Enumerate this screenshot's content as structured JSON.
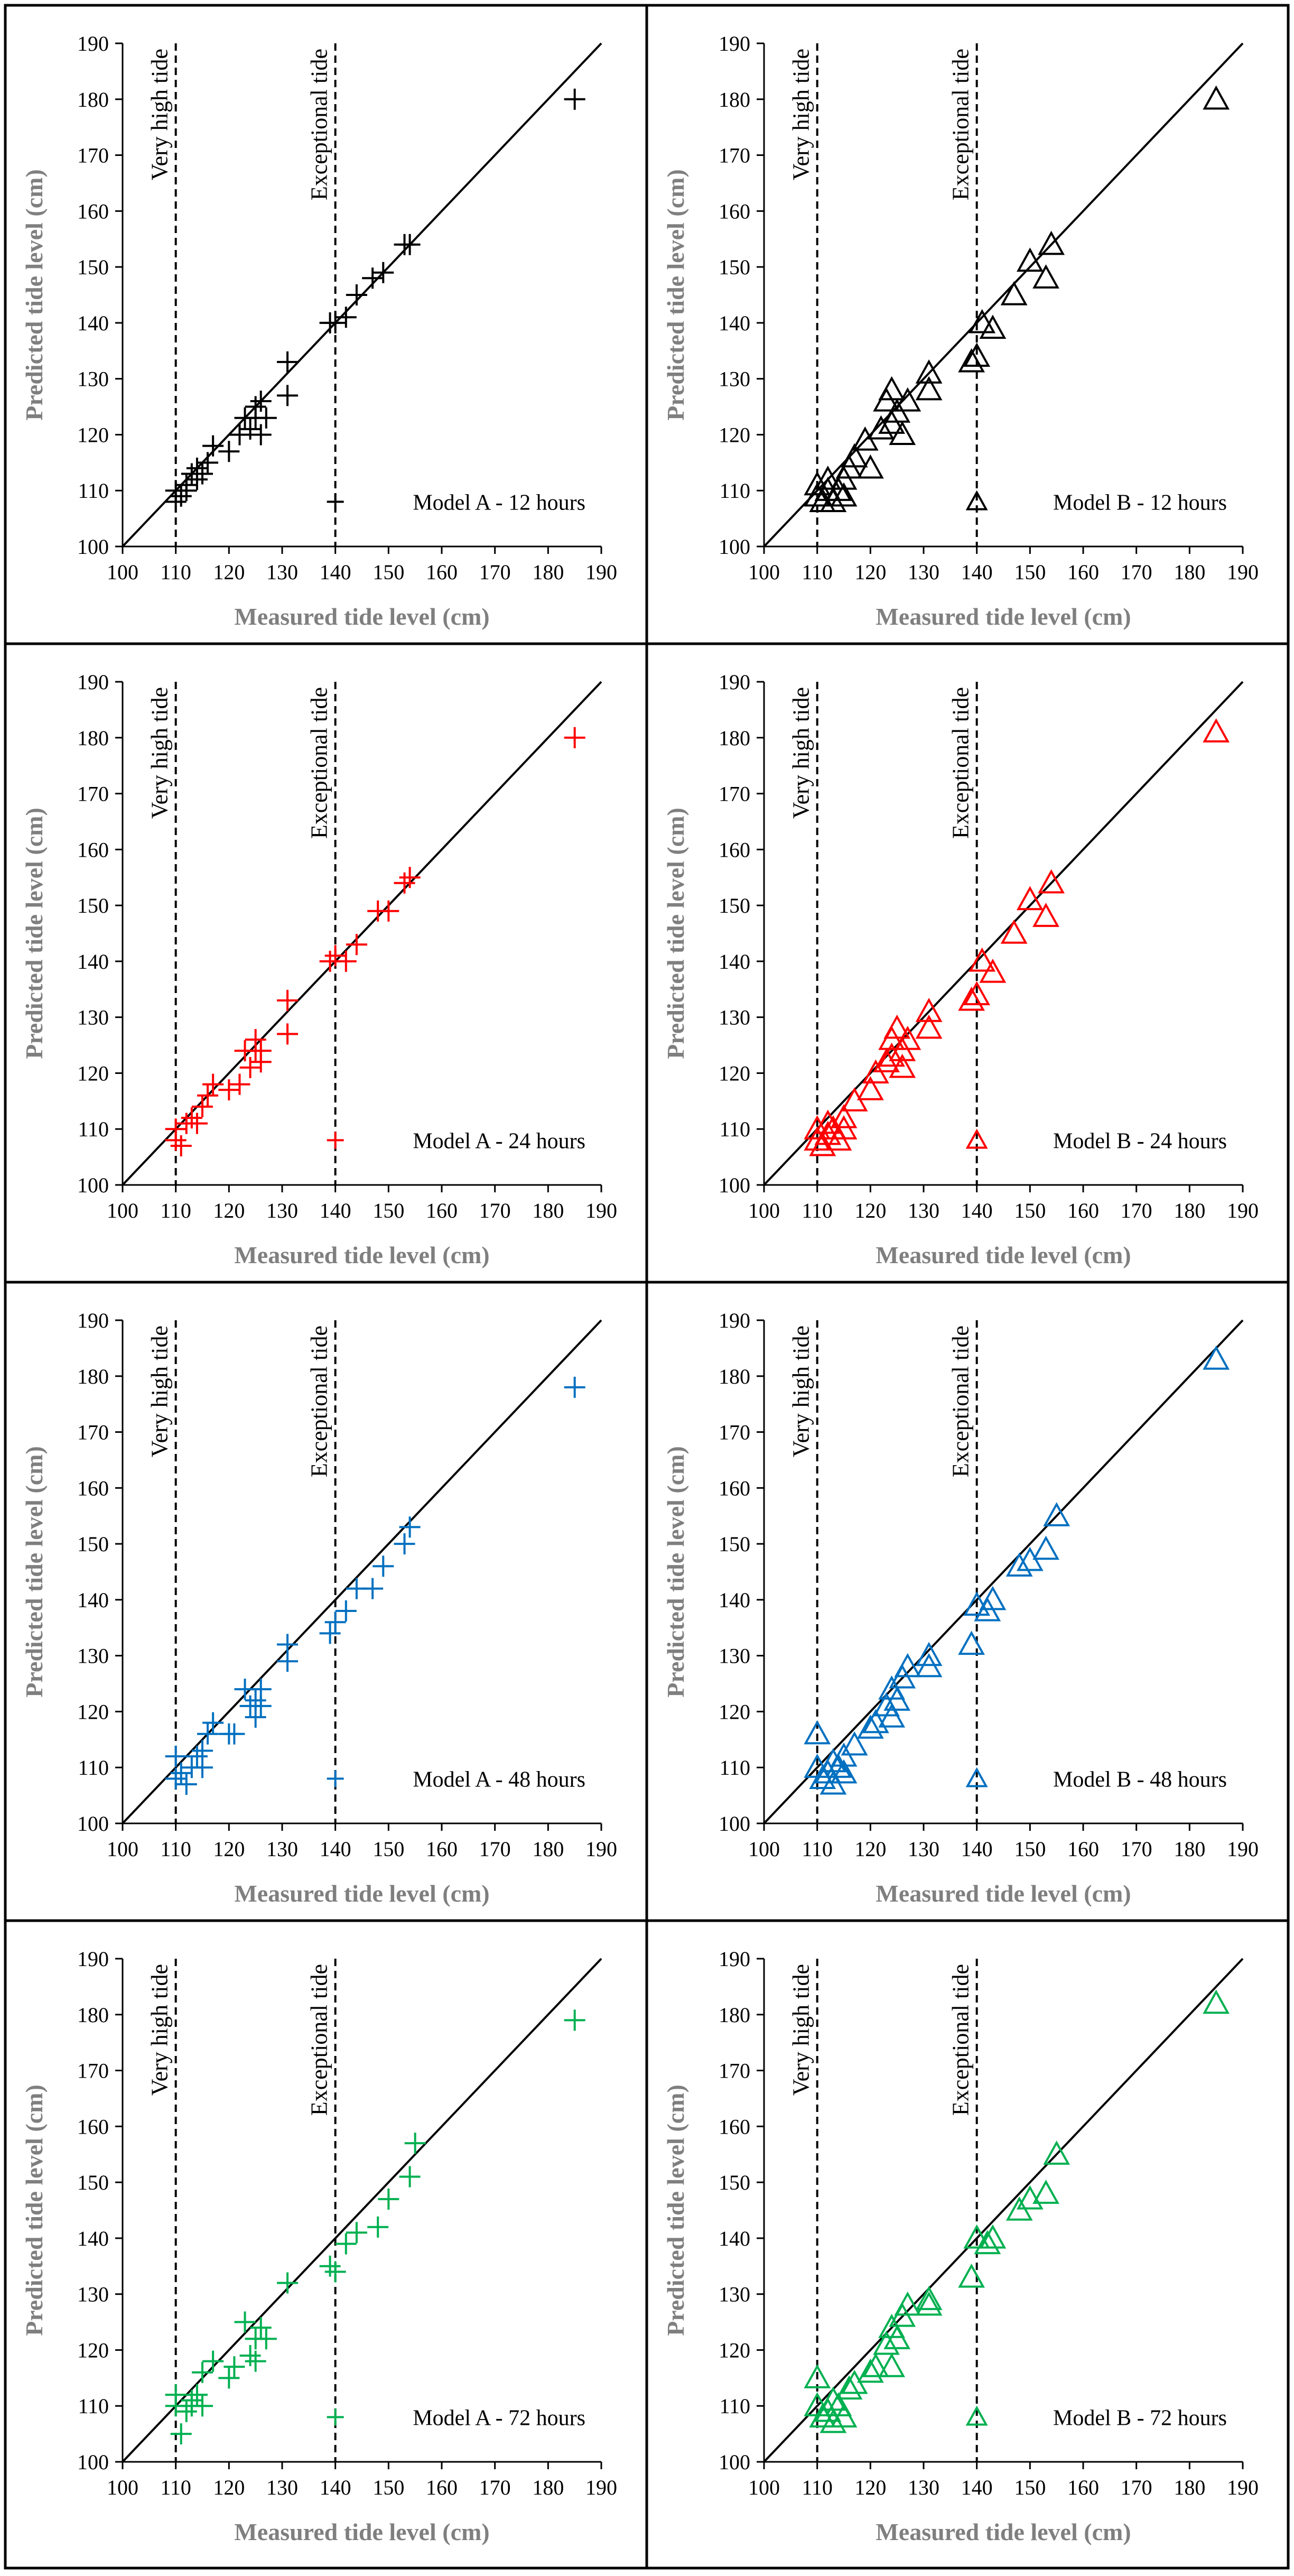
{
  "colors": {
    "black": "#000000",
    "red": "#ff0000",
    "blue": "#0070c0",
    "green": "#00b050",
    "axis_title": "#7f7f7f"
  },
  "chart_data": [
    {
      "type": "scatter",
      "panel": "Model A - 12 hours",
      "marker": "plus",
      "color_key": "black",
      "xlabel": "Measured tide level (cm)",
      "ylabel": "Predicted tide level (cm)",
      "xlim": [
        100,
        190
      ],
      "ylim": [
        100,
        190
      ],
      "xticks": [
        100,
        110,
        120,
        130,
        140,
        150,
        160,
        170,
        180,
        190
      ],
      "yticks": [
        100,
        110,
        120,
        130,
        140,
        150,
        160,
        170,
        180,
        190
      ],
      "ref_lines": [
        {
          "x": 110,
          "label": "Very  high tide"
        },
        {
          "x": 140,
          "label": "Exceptional tide"
        }
      ],
      "legend_label": "Model A - 12 hours",
      "points": [
        [
          110,
          110
        ],
        [
          110,
          108
        ],
        [
          111,
          109
        ],
        [
          112,
          111
        ],
        [
          112,
          110
        ],
        [
          113,
          113
        ],
        [
          114,
          112
        ],
        [
          114,
          114
        ],
        [
          115,
          113
        ],
        [
          116,
          115
        ],
        [
          117,
          118
        ],
        [
          120,
          117
        ],
        [
          122,
          120
        ],
        [
          123,
          123
        ],
        [
          124,
          121
        ],
        [
          125,
          123
        ],
        [
          125,
          125
        ],
        [
          126,
          126
        ],
        [
          126,
          120
        ],
        [
          127,
          123
        ],
        [
          131,
          133
        ],
        [
          131,
          127
        ],
        [
          139,
          140
        ],
        [
          140,
          140
        ],
        [
          142,
          141
        ],
        [
          144,
          145
        ],
        [
          147,
          148
        ],
        [
          149,
          149
        ],
        [
          153,
          154
        ],
        [
          154,
          154
        ],
        [
          185,
          180
        ]
      ]
    },
    {
      "type": "scatter",
      "panel": "Model B - 12 hours",
      "marker": "triangle",
      "color_key": "black",
      "xlabel": "Measured tide level (cm)",
      "ylabel": "Predicted tide level (cm)",
      "xlim": [
        100,
        190
      ],
      "ylim": [
        100,
        190
      ],
      "xticks": [
        100,
        110,
        120,
        130,
        140,
        150,
        160,
        170,
        180,
        190
      ],
      "yticks": [
        100,
        110,
        120,
        130,
        140,
        150,
        160,
        170,
        180,
        190
      ],
      "ref_lines": [
        {
          "x": 110,
          "label": "Very  high tide"
        },
        {
          "x": 140,
          "label": "Exceptional tide"
        }
      ],
      "legend_label": "Model B - 12 hours",
      "points": [
        [
          110,
          109
        ],
        [
          110,
          111
        ],
        [
          111,
          108
        ],
        [
          112,
          110
        ],
        [
          112,
          112
        ],
        [
          113,
          108
        ],
        [
          114,
          110
        ],
        [
          115,
          112
        ],
        [
          115,
          109
        ],
        [
          116,
          114
        ],
        [
          117,
          116
        ],
        [
          119,
          119
        ],
        [
          120,
          114
        ],
        [
          122,
          121
        ],
        [
          123,
          126
        ],
        [
          124,
          128
        ],
        [
          124,
          122
        ],
        [
          125,
          124
        ],
        [
          126,
          120
        ],
        [
          127,
          126
        ],
        [
          131,
          131
        ],
        [
          131,
          128
        ],
        [
          139,
          133
        ],
        [
          140,
          134
        ],
        [
          141,
          140
        ],
        [
          143,
          139
        ],
        [
          147,
          145
        ],
        [
          150,
          151
        ],
        [
          153,
          148
        ],
        [
          154,
          154
        ],
        [
          185,
          180
        ]
      ]
    },
    {
      "type": "scatter",
      "panel": "Model A - 24 hours",
      "marker": "plus",
      "color_key": "red",
      "xlabel": "Measured tide level (cm)",
      "ylabel": "Predicted tide level (cm)",
      "xlim": [
        100,
        190
      ],
      "ylim": [
        100,
        190
      ],
      "xticks": [
        100,
        110,
        120,
        130,
        140,
        150,
        160,
        170,
        180,
        190
      ],
      "yticks": [
        100,
        110,
        120,
        130,
        140,
        150,
        160,
        170,
        180,
        190
      ],
      "ref_lines": [
        {
          "x": 110,
          "label": "Very  high tide"
        },
        {
          "x": 140,
          "label": "Exceptional tide"
        }
      ],
      "legend_label": "Model A - 24 hours",
      "points": [
        [
          110,
          110
        ],
        [
          110,
          108
        ],
        [
          111,
          107
        ],
        [
          112,
          111
        ],
        [
          113,
          112
        ],
        [
          114,
          111
        ],
        [
          115,
          114
        ],
        [
          116,
          116
        ],
        [
          117,
          118
        ],
        [
          120,
          117
        ],
        [
          122,
          118
        ],
        [
          123,
          124
        ],
        [
          124,
          121
        ],
        [
          125,
          124
        ],
        [
          125,
          126
        ],
        [
          126,
          122
        ],
        [
          126,
          124
        ],
        [
          131,
          133
        ],
        [
          131,
          127
        ],
        [
          139,
          140
        ],
        [
          140,
          141
        ],
        [
          142,
          140
        ],
        [
          144,
          143
        ],
        [
          148,
          149
        ],
        [
          150,
          149
        ],
        [
          153,
          154
        ],
        [
          154,
          155
        ],
        [
          185,
          180
        ]
      ]
    },
    {
      "type": "scatter",
      "panel": "Model B - 24 hours",
      "marker": "triangle",
      "color_key": "red",
      "xlabel": "Measured tide level (cm)",
      "ylabel": "Predicted tide level (cm)",
      "xlim": [
        100,
        190
      ],
      "ylim": [
        100,
        190
      ],
      "xticks": [
        100,
        110,
        120,
        130,
        140,
        150,
        160,
        170,
        180,
        190
      ],
      "yticks": [
        100,
        110,
        120,
        130,
        140,
        150,
        160,
        170,
        180,
        190
      ],
      "ref_lines": [
        {
          "x": 110,
          "label": "Very  high tide"
        },
        {
          "x": 140,
          "label": "Exceptional tide"
        }
      ],
      "legend_label": "Model B - 24 hours",
      "points": [
        [
          110,
          108
        ],
        [
          110,
          110
        ],
        [
          111,
          107
        ],
        [
          112,
          109
        ],
        [
          112,
          111
        ],
        [
          113,
          110
        ],
        [
          114,
          108
        ],
        [
          115,
          110
        ],
        [
          115,
          112
        ],
        [
          117,
          115
        ],
        [
          120,
          117
        ],
        [
          121,
          120
        ],
        [
          123,
          122
        ],
        [
          124,
          126
        ],
        [
          124,
          123
        ],
        [
          125,
          128
        ],
        [
          126,
          124
        ],
        [
          126,
          121
        ],
        [
          127,
          126
        ],
        [
          131,
          131
        ],
        [
          131,
          128
        ],
        [
          139,
          133
        ],
        [
          140,
          134
        ],
        [
          141,
          140
        ],
        [
          143,
          138
        ],
        [
          147,
          145
        ],
        [
          150,
          151
        ],
        [
          153,
          148
        ],
        [
          154,
          154
        ],
        [
          185,
          181
        ]
      ]
    },
    {
      "type": "scatter",
      "panel": "Model A - 48 hours",
      "marker": "plus",
      "color_key": "blue",
      "xlabel": "Measured tide level (cm)",
      "ylabel": "Predicted tide level (cm)",
      "xlim": [
        100,
        190
      ],
      "ylim": [
        100,
        190
      ],
      "xticks": [
        100,
        110,
        120,
        130,
        140,
        150,
        160,
        170,
        180,
        190
      ],
      "yticks": [
        100,
        110,
        120,
        130,
        140,
        150,
        160,
        170,
        180,
        190
      ],
      "ref_lines": [
        {
          "x": 110,
          "label": "Very  high tide"
        },
        {
          "x": 140,
          "label": "Exceptional tide"
        }
      ],
      "legend_label": "Model A - 48 hours",
      "points": [
        [
          110,
          112
        ],
        [
          110,
          108
        ],
        [
          111,
          109
        ],
        [
          112,
          107
        ],
        [
          113,
          110
        ],
        [
          114,
          112
        ],
        [
          115,
          113
        ],
        [
          115,
          110
        ],
        [
          116,
          116
        ],
        [
          117,
          118
        ],
        [
          120,
          116
        ],
        [
          121,
          116
        ],
        [
          123,
          124
        ],
        [
          124,
          121
        ],
        [
          125,
          119
        ],
        [
          125,
          122
        ],
        [
          126,
          124
        ],
        [
          126,
          121
        ],
        [
          131,
          132
        ],
        [
          131,
          129
        ],
        [
          139,
          134
        ],
        [
          140,
          136
        ],
        [
          142,
          138
        ],
        [
          144,
          142
        ],
        [
          147,
          142
        ],
        [
          149,
          146
        ],
        [
          153,
          150
        ],
        [
          154,
          153
        ],
        [
          185,
          178
        ]
      ]
    },
    {
      "type": "scatter",
      "panel": "Model B - 48 hours",
      "marker": "triangle",
      "color_key": "blue",
      "xlabel": "Measured tide level (cm)",
      "ylabel": "Predicted tide level (cm)",
      "xlim": [
        100,
        190
      ],
      "ylim": [
        100,
        190
      ],
      "xticks": [
        100,
        110,
        120,
        130,
        140,
        150,
        160,
        170,
        180,
        190
      ],
      "yticks": [
        100,
        110,
        120,
        130,
        140,
        150,
        160,
        170,
        180,
        190
      ],
      "ref_lines": [
        {
          "x": 110,
          "label": "Very  high tide"
        },
        {
          "x": 140,
          "label": "Exceptional tide"
        }
      ],
      "legend_label": "Model B - 48 hours",
      "points": [
        [
          110,
          116
        ],
        [
          110,
          110
        ],
        [
          111,
          108
        ],
        [
          112,
          109
        ],
        [
          113,
          107
        ],
        [
          113,
          111
        ],
        [
          114,
          110
        ],
        [
          115,
          109
        ],
        [
          115,
          112
        ],
        [
          117,
          114
        ],
        [
          120,
          117
        ],
        [
          121,
          118
        ],
        [
          123,
          121
        ],
        [
          124,
          124
        ],
        [
          124,
          119
        ],
        [
          125,
          122
        ],
        [
          126,
          126
        ],
        [
          127,
          128
        ],
        [
          131,
          130
        ],
        [
          131,
          128
        ],
        [
          139,
          132
        ],
        [
          140,
          139
        ],
        [
          142,
          138
        ],
        [
          143,
          140
        ],
        [
          148,
          146
        ],
        [
          150,
          147
        ],
        [
          153,
          149
        ],
        [
          155,
          155
        ],
        [
          185,
          183
        ]
      ]
    },
    {
      "type": "scatter",
      "panel": "Model A - 72 hours",
      "marker": "plus",
      "color_key": "green",
      "xlabel": "Measured tide level (cm)",
      "ylabel": "Predicted tide level (cm)",
      "xlim": [
        100,
        190
      ],
      "ylim": [
        100,
        190
      ],
      "xticks": [
        100,
        110,
        120,
        130,
        140,
        150,
        160,
        170,
        180,
        190
      ],
      "yticks": [
        100,
        110,
        120,
        130,
        140,
        150,
        160,
        170,
        180,
        190
      ],
      "ref_lines": [
        {
          "x": 110,
          "label": "Very  high tide"
        },
        {
          "x": 140,
          "label": "Exceptional tide"
        }
      ],
      "legend_label": "Model A - 72 hours",
      "points": [
        [
          110,
          110
        ],
        [
          110,
          112
        ],
        [
          111,
          105
        ],
        [
          112,
          109
        ],
        [
          113,
          111
        ],
        [
          113,
          110
        ],
        [
          114,
          112
        ],
        [
          115,
          116
        ],
        [
          115,
          110
        ],
        [
          117,
          118
        ],
        [
          120,
          115
        ],
        [
          121,
          117
        ],
        [
          123,
          125
        ],
        [
          124,
          119
        ],
        [
          125,
          122
        ],
        [
          125,
          118
        ],
        [
          126,
          124
        ],
        [
          127,
          122
        ],
        [
          131,
          132
        ],
        [
          139,
          135
        ],
        [
          140,
          134
        ],
        [
          142,
          139
        ],
        [
          144,
          141
        ],
        [
          148,
          142
        ],
        [
          150,
          147
        ],
        [
          154,
          151
        ],
        [
          155,
          157
        ],
        [
          185,
          179
        ]
      ]
    },
    {
      "type": "scatter",
      "panel": "Model B - 72 hours",
      "marker": "triangle",
      "color_key": "green",
      "xlabel": "Measured tide level (cm)",
      "ylabel": "Predicted tide level (cm)",
      "xlim": [
        100,
        190
      ],
      "ylim": [
        100,
        190
      ],
      "xticks": [
        100,
        110,
        120,
        130,
        140,
        150,
        160,
        170,
        180,
        190
      ],
      "yticks": [
        100,
        110,
        120,
        130,
        140,
        150,
        160,
        170,
        180,
        190
      ],
      "ref_lines": [
        {
          "x": 110,
          "label": "Very  high tide"
        },
        {
          "x": 140,
          "label": "Exceptional tide"
        }
      ],
      "legend_label": "Model B - 72 hours",
      "points": [
        [
          110,
          115
        ],
        [
          110,
          110
        ],
        [
          111,
          108
        ],
        [
          112,
          109
        ],
        [
          113,
          111
        ],
        [
          113,
          107
        ],
        [
          114,
          110
        ],
        [
          115,
          108
        ],
        [
          116,
          113
        ],
        [
          117,
          114
        ],
        [
          120,
          116
        ],
        [
          121,
          117
        ],
        [
          123,
          121
        ],
        [
          124,
          117
        ],
        [
          124,
          124
        ],
        [
          125,
          122
        ],
        [
          126,
          126
        ],
        [
          127,
          128
        ],
        [
          131,
          129
        ],
        [
          131,
          128
        ],
        [
          139,
          133
        ],
        [
          140,
          140
        ],
        [
          142,
          139
        ],
        [
          143,
          140
        ],
        [
          148,
          145
        ],
        [
          150,
          147
        ],
        [
          153,
          148
        ],
        [
          155,
          155
        ],
        [
          185,
          182
        ]
      ]
    }
  ]
}
